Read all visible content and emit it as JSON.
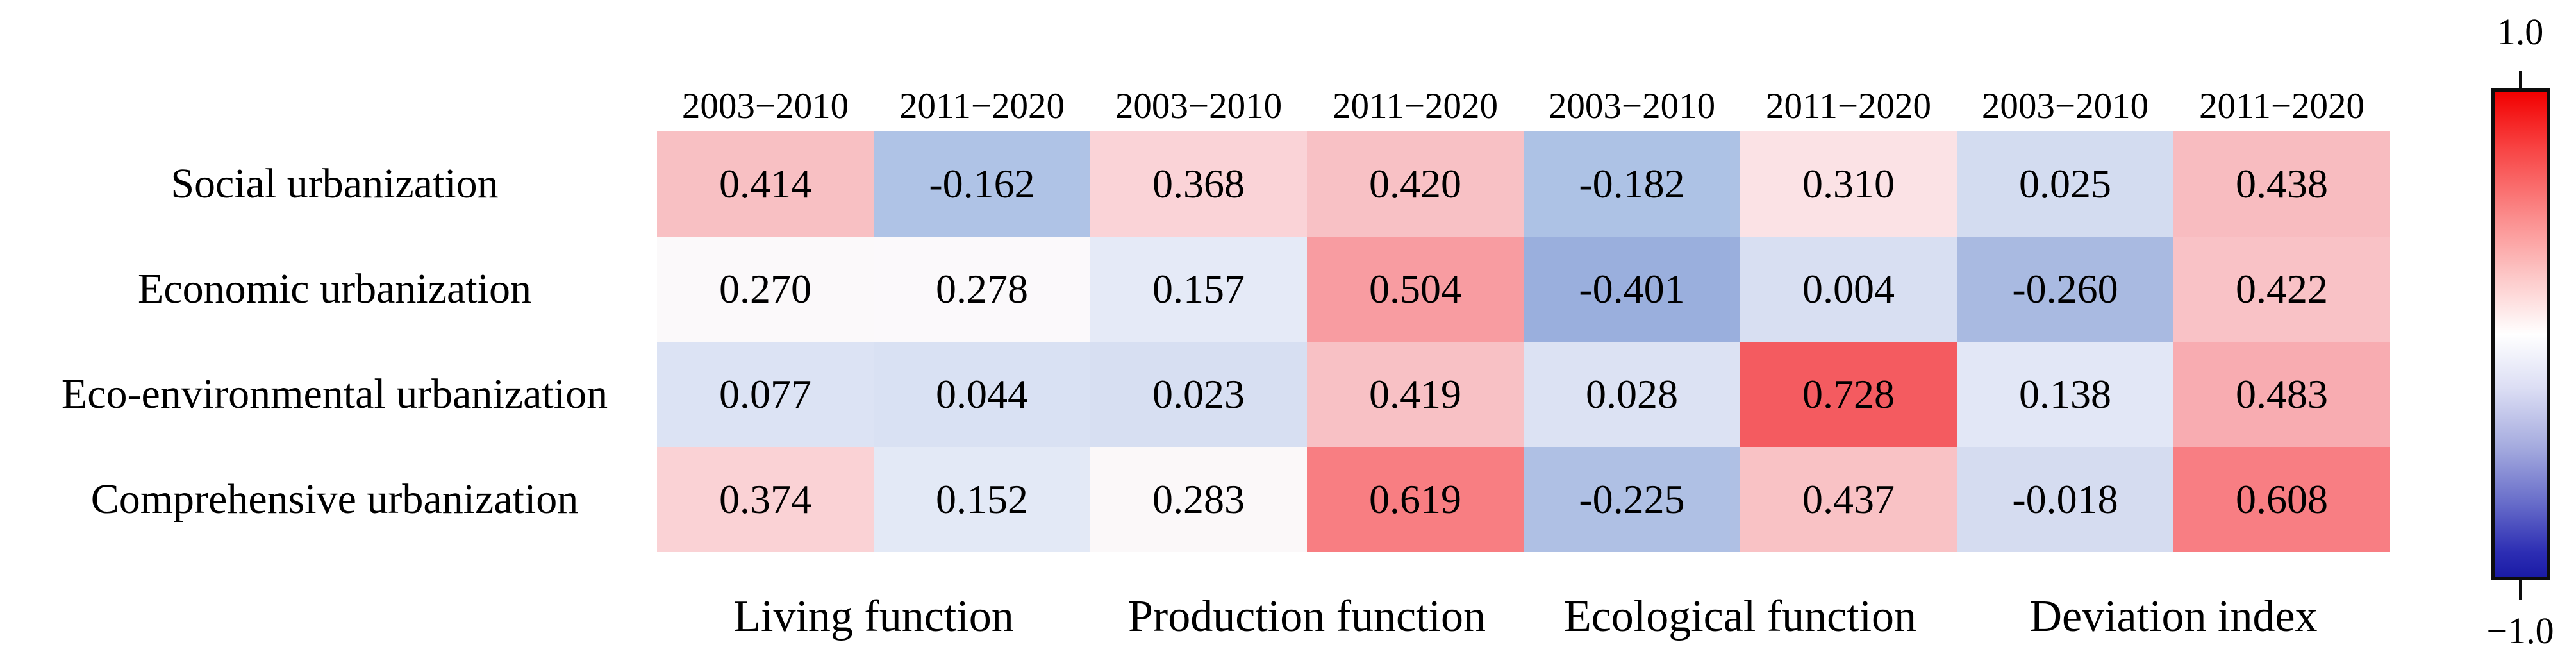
{
  "chart_data": {
    "type": "heatmap",
    "rows": [
      "Social urbanization",
      "Economic urbanization",
      "Eco-environmental urbanization",
      "Comprehensive urbanization"
    ],
    "column_headers": [
      "2003−2010",
      "2011−2020",
      "2003−2010",
      "2011−2020",
      "2003−2010",
      "2011−2020",
      "2003−2010",
      "2011−2020"
    ],
    "column_groups": [
      "Living function",
      "Production function",
      "Ecological function",
      "Deviation index"
    ],
    "values": [
      [
        0.414,
        -0.162,
        0.368,
        0.42,
        -0.182,
        0.31,
        0.025,
        0.438
      ],
      [
        0.27,
        0.278,
        0.157,
        0.504,
        -0.401,
        0.004,
        -0.26,
        0.422
      ],
      [
        0.077,
        0.044,
        0.023,
        0.419,
        0.028,
        0.728,
        0.138,
        0.483
      ],
      [
        0.374,
        0.152,
        0.283,
        0.619,
        -0.225,
        0.437,
        -0.018,
        0.608
      ]
    ],
    "value_labels": [
      [
        "0.414",
        "-0.162",
        "0.368",
        "0.420",
        "-0.182",
        "0.310",
        "0.025",
        "0.438"
      ],
      [
        "0.270",
        "0.278",
        "0.157",
        "0.504",
        "-0.401",
        "0.004",
        "-0.260",
        "0.422"
      ],
      [
        "0.077",
        "0.044",
        "0.023",
        "0.419",
        "0.028",
        "0.728",
        "0.138",
        "0.483"
      ],
      [
        "0.374",
        "0.152",
        "0.283",
        "0.619",
        "-0.225",
        "0.437",
        "-0.018",
        "0.608"
      ]
    ],
    "cell_colors": [
      [
        "#f8c0c3",
        "#afc3e6",
        "#fad3d7",
        "#f8c1c5",
        "#adc2e5",
        "#fbe2e5",
        "#d3dcf0",
        "#f8bcc0"
      ],
      [
        "#fbf9fa",
        "#fbf9fb",
        "#e5eaf7",
        "#f89ca1",
        "#9aafdd",
        "#d8dff2",
        "#a9bae1",
        "#f9c2c6"
      ],
      [
        "#dce3f4",
        "#d9e1f3",
        "#d7dff2",
        "#f8c1c5",
        "#dce2f3",
        "#f45b60",
        "#e2e7f6",
        "#f8acb1"
      ],
      [
        "#fad2d5",
        "#e3e9f6",
        "#fbf8f9",
        "#f87e82",
        "#afc0e4",
        "#f9c2c5",
        "#d5dcf0",
        "#f87e83"
      ]
    ],
    "colorbar": {
      "max_label": "1.0",
      "min_label": "−1.0",
      "range": [
        -1.0,
        1.0
      ],
      "top_color": "#f20000",
      "mid_color": "#ffffff",
      "bottom_color": "#1a1ba6",
      "position": "right"
    },
    "grid": "off",
    "title": ""
  }
}
